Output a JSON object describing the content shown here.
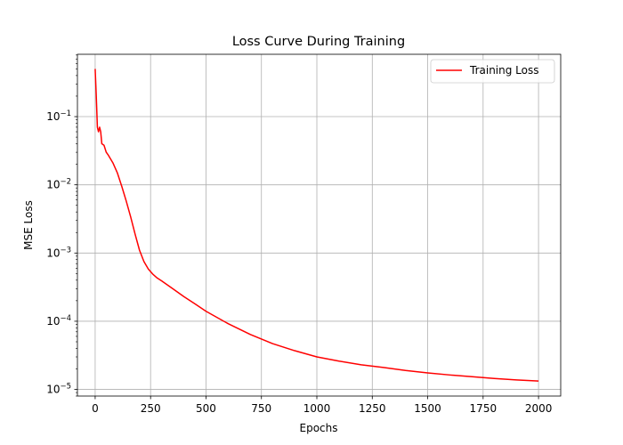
{
  "chart_data": {
    "type": "line",
    "title": "Loss Curve During Training",
    "xlabel": "Epochs",
    "ylabel": "MSE Loss",
    "xlim": [
      -80,
      2100
    ],
    "ylim": [
      8e-06,
      0.82
    ],
    "yscale": "log",
    "grid": true,
    "legend_position": "top-right",
    "x_ticks": [
      0,
      250,
      500,
      750,
      1000,
      1250,
      1500,
      1750,
      2000
    ],
    "y_ticks": [
      {
        "value": 0.1,
        "base": "10",
        "exp": "−1"
      },
      {
        "value": 0.01,
        "base": "10",
        "exp": "−2"
      },
      {
        "value": 0.001,
        "base": "10",
        "exp": "−3"
      },
      {
        "value": 0.0001,
        "base": "10",
        "exp": "−4"
      },
      {
        "value": 1e-05,
        "base": "10",
        "exp": "−5"
      }
    ],
    "series": [
      {
        "name": "Training Loss",
        "color": "#ff0000",
        "x": [
          0,
          5,
          10,
          15,
          20,
          25,
          30,
          40,
          50,
          60,
          80,
          100,
          120,
          140,
          160,
          180,
          200,
          220,
          240,
          260,
          280,
          300,
          350,
          400,
          450,
          500,
          600,
          700,
          800,
          900,
          1000,
          1100,
          1200,
          1300,
          1400,
          1500,
          1600,
          1700,
          1800,
          1900,
          2000
        ],
        "y": [
          0.5,
          0.2,
          0.07,
          0.06,
          0.07,
          0.06,
          0.04,
          0.038,
          0.03,
          0.027,
          0.021,
          0.015,
          0.0095,
          0.0058,
          0.0034,
          0.0019,
          0.0011,
          0.00075,
          0.00058,
          0.00049,
          0.00043,
          0.00039,
          0.0003,
          0.00023,
          0.00018,
          0.00014,
          9.2e-05,
          6.4e-05,
          4.7e-05,
          3.7e-05,
          3e-05,
          2.6e-05,
          2.3e-05,
          2.1e-05,
          1.9e-05,
          1.75e-05,
          1.63e-05,
          1.54e-05,
          1.45e-05,
          1.38e-05,
          1.33e-05
        ]
      }
    ]
  }
}
